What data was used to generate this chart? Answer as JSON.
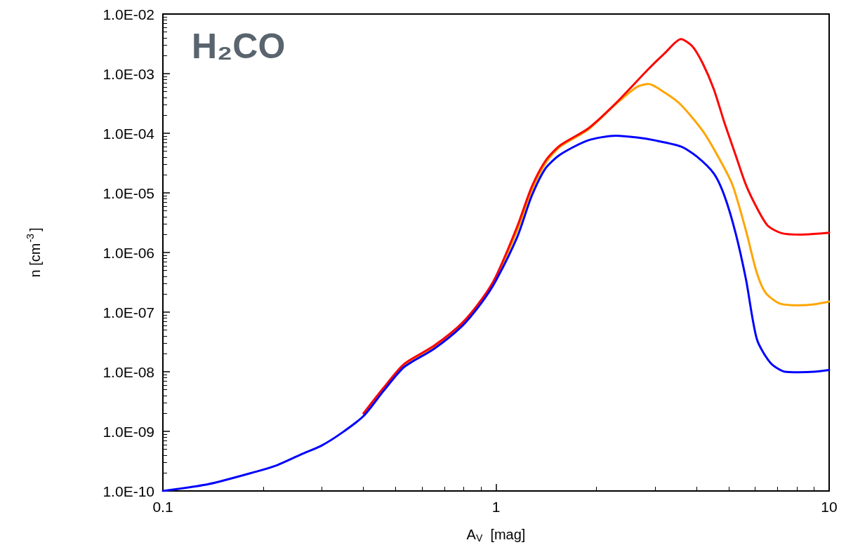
{
  "chart_data": {
    "type": "line",
    "title": "H₂CO",
    "xlabel": "A$_{V}$  [mag]",
    "ylabel": "n [cm$^{-3}$]",
    "log": "xy",
    "grid": false,
    "marker": "none",
    "line_style": "solid",
    "xlim": [
      0.1,
      10
    ],
    "xticks": [
      0.1,
      1,
      10
    ],
    "ylim": [
      1e-10,
      0.01
    ],
    "yticks": [
      {
        "value": 1e-10,
        "label": "1.0E-10"
      },
      {
        "value": 1e-09,
        "label": "1.0E-09"
      },
      {
        "value": 1e-08,
        "label": "1.0E-08"
      },
      {
        "value": 1e-07,
        "label": "1.0E-07"
      },
      {
        "value": 1e-06,
        "label": "1.0E-06"
      },
      {
        "value": 1e-05,
        "label": "1.0E-05"
      },
      {
        "value": 0.0001,
        "label": "1.0E-04"
      },
      {
        "value": 0.001,
        "label": "1.0E-03"
      },
      {
        "value": 0.01,
        "label": "1.0E-02"
      }
    ],
    "series": [
      {
        "color": "#ffa500",
        "x": [
          0.46,
          0.53,
          0.65,
          0.79,
          0.91,
          1.0,
          1.16,
          1.28,
          1.41,
          1.56,
          1.89,
          2.29,
          2.65,
          2.87,
          3.21,
          3.59,
          4.17,
          4.66,
          5.13,
          5.63,
          6.07,
          6.45,
          7.1,
          8.1,
          9.0,
          10
        ],
        "values": [
          5.2e-09,
          1.3e-08,
          2.6e-08,
          6.3e-08,
          1.6e-07,
          3.8e-07,
          2.4e-06,
          1.1e-05,
          3.2e-05,
          6e-05,
          0.000115,
          0.00031,
          0.0006,
          0.00067,
          0.00048,
          0.0003,
          0.00011,
          3.9e-05,
          1.35e-05,
          2.3e-06,
          4.5e-07,
          2.1e-07,
          1.4e-07,
          1.3e-07,
          1.35e-07,
          1.5e-07
        ]
      },
      {
        "color": "#ff0000",
        "x": [
          0.4,
          0.46,
          0.53,
          0.65,
          0.79,
          0.91,
          1.0,
          1.16,
          1.28,
          1.41,
          1.56,
          1.89,
          2.29,
          2.87,
          3.21,
          3.59,
          3.88,
          4.17,
          4.51,
          4.85,
          5.24,
          5.63,
          6.09,
          6.55,
          7.22,
          8.2,
          9.0,
          10
        ],
        "values": [
          2e-09,
          5.4e-09,
          1.35e-08,
          2.7e-08,
          6.5e-08,
          1.7e-07,
          4e-07,
          2.8e-06,
          1.26e-05,
          3.5e-05,
          6.3e-05,
          0.00012,
          0.00032,
          0.0012,
          0.0022,
          0.0038,
          0.0029,
          0.0015,
          0.00054,
          0.00015,
          4.3e-05,
          1.35e-05,
          5.4e-06,
          2.8e-06,
          2.1e-06,
          2e-06,
          2.05e-06,
          2.15e-06
        ]
      },
      {
        "color": "#0000ff",
        "x": [
          0.1,
          0.137,
          0.19,
          0.22,
          0.26,
          0.3,
          0.345,
          0.4,
          0.46,
          0.53,
          0.65,
          0.79,
          0.91,
          1.0,
          1.16,
          1.28,
          1.41,
          1.56,
          1.89,
          2.29,
          2.65,
          3.0,
          3.59,
          4.0,
          4.51,
          4.85,
          5.24,
          5.63,
          6.07,
          6.67,
          7.36,
          8.1,
          9.0,
          10
        ],
        "values": [
          1e-10,
          1.3e-10,
          2.1e-10,
          2.7e-10,
          4.1e-10,
          5.8e-10,
          9.5e-10,
          1.8e-09,
          4.8e-09,
          1.2e-08,
          2.4e-08,
          5.8e-08,
          1.5e-07,
          3.4e-07,
          1.86e-06,
          8.9e-06,
          2.6e-05,
          4.4e-05,
          7.6e-05,
          9.1e-05,
          8.5e-05,
          7.6e-05,
          6e-05,
          4.1e-05,
          2.1e-05,
          8.9e-06,
          2.1e-06,
          3.5e-07,
          3.5e-08,
          1.4e-08,
          1e-08,
          9.8e-09,
          1e-08,
          1.07e-08
        ]
      }
    ]
  }
}
